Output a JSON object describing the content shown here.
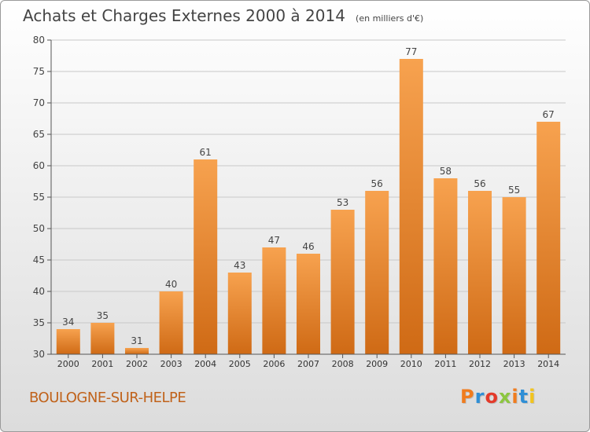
{
  "chart_data": {
    "type": "bar",
    "title": "Achats et Charges Externes 2000 à 2014",
    "subtitle": "(en milliers d'€)",
    "categories": [
      "2000",
      "2001",
      "2002",
      "2003",
      "2004",
      "2005",
      "2006",
      "2007",
      "2008",
      "2009",
      "2010",
      "2011",
      "2012",
      "2013",
      "2014"
    ],
    "values": [
      34,
      35,
      31,
      40,
      61,
      43,
      47,
      46,
      53,
      56,
      77,
      58,
      56,
      55,
      67
    ],
    "ylim": [
      30,
      80
    ],
    "yticks": [
      30,
      35,
      40,
      45,
      50,
      55,
      60,
      65,
      70,
      75,
      80
    ],
    "grid": true,
    "bar_color": "#f0923a"
  },
  "footer": {
    "commune": "BOULOGNE-SUR-HELPE"
  },
  "brand": {
    "text": "Proxiti",
    "colors": [
      "#f07c1e",
      "#2f8fd6",
      "#e43a2a",
      "#8cc63f",
      "#f07c1e",
      "#2f8fd6",
      "#f2c41e"
    ]
  }
}
